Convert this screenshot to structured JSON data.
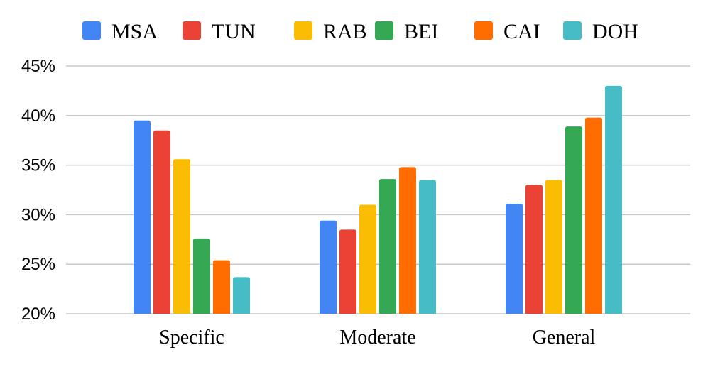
{
  "chart_data": {
    "type": "bar",
    "title": "",
    "xlabel": "",
    "ylabel": "",
    "categories": [
      "Specific",
      "Moderate",
      "General"
    ],
    "ylim": [
      20,
      45
    ],
    "yticks": [
      20,
      25,
      30,
      35,
      40,
      45
    ],
    "ytick_labels": [
      "20%",
      "25%",
      "30%",
      "35%",
      "40%",
      "45%"
    ],
    "grid": true,
    "legend_position": "top",
    "series": [
      {
        "name": "MSA",
        "color": "#4285F4",
        "values": [
          39.5,
          29.4,
          31.1
        ]
      },
      {
        "name": "TUN",
        "color": "#EA4335",
        "values": [
          38.5,
          28.5,
          33.0
        ]
      },
      {
        "name": "RAB",
        "color": "#FBBC04",
        "values": [
          35.6,
          31.0,
          33.5
        ]
      },
      {
        "name": "BEI",
        "color": "#34A853",
        "values": [
          27.6,
          33.6,
          38.9
        ]
      },
      {
        "name": "CAI",
        "color": "#FF6D01",
        "values": [
          25.4,
          34.8,
          39.8
        ]
      },
      {
        "name": "DOH",
        "color": "#46BDC6",
        "values": [
          23.7,
          33.5,
          43.0
        ]
      }
    ]
  }
}
